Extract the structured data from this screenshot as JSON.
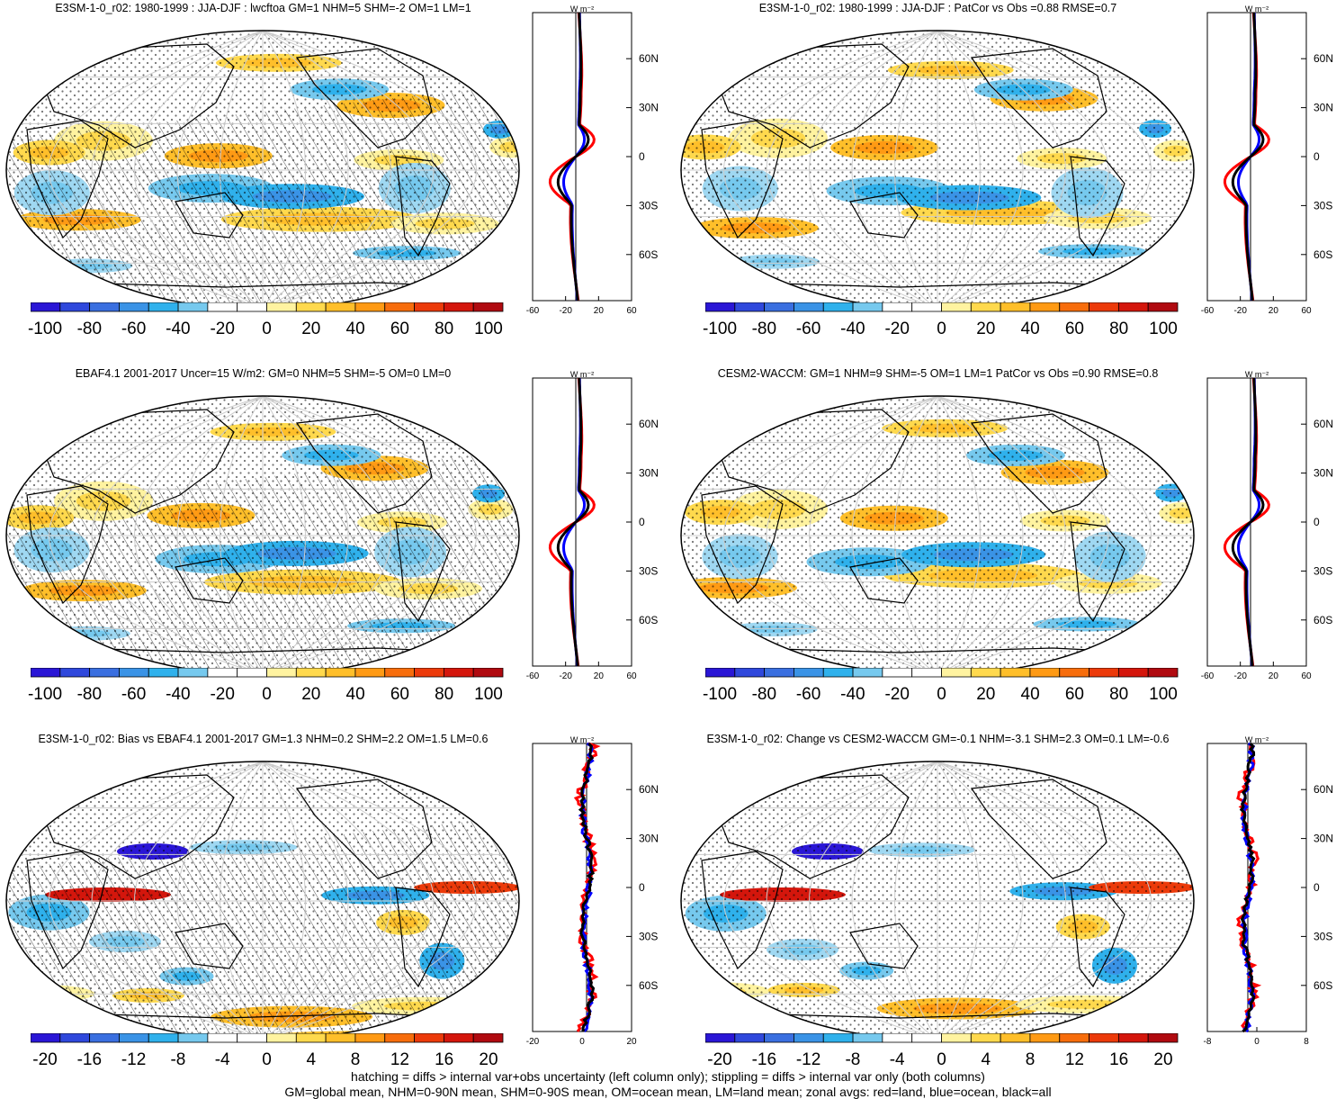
{
  "panels": [
    {
      "title": "E3SM-1-0_r02: 1980-1999 : JJA-DJF : lwcftoa GM=1 NHM=5 SHM=-2 OM=1 LM=1",
      "colorbar_labels": [
        "-100",
        "-80",
        "-60",
        "-40",
        "-20",
        "0",
        "20",
        "40",
        "60",
        "80",
        "100"
      ],
      "zonal_units": "W m⁻²",
      "zonal_x_ticks": [
        "-60",
        "-20",
        "20",
        "60"
      ],
      "lat_ticks": [
        "60N",
        "30N",
        "0",
        "30S",
        "60S"
      ],
      "hatching": true
    },
    {
      "title": "E3SM-1-0_r02: 1980-1999 : JJA-DJF : PatCor vs Obs =0.88 RMSE=0.7",
      "colorbar_labels": [
        "-100",
        "-80",
        "-60",
        "-40",
        "-20",
        "0",
        "20",
        "40",
        "60",
        "80",
        "100"
      ],
      "zonal_units": "W m⁻²",
      "zonal_x_ticks": [
        "-60",
        "-20",
        "20",
        "60"
      ],
      "lat_ticks": [
        "60N",
        "30N",
        "0",
        "30S",
        "60S"
      ],
      "hatching": false
    },
    {
      "title": "EBAF4.1 2001-2017 Uncer=15 W/m2: GM=0 NHM=5 SHM=-5 OM=0 LM=0",
      "colorbar_labels": [
        "-100",
        "-80",
        "-60",
        "-40",
        "-20",
        "0",
        "20",
        "40",
        "60",
        "80",
        "100"
      ],
      "zonal_units": "W m⁻²",
      "zonal_x_ticks": [
        "-60",
        "-20",
        "20",
        "60"
      ],
      "lat_ticks": [
        "60N",
        "30N",
        "0",
        "30S",
        "60S"
      ],
      "hatching": true
    },
    {
      "title": "CESM2-WACCM: GM=1 NHM=9 SHM=-5 OM=1 LM=1 PatCor vs Obs =0.90 RMSE=0.8",
      "colorbar_labels": [
        "-100",
        "-80",
        "-60",
        "-40",
        "-20",
        "0",
        "20",
        "40",
        "60",
        "80",
        "100"
      ],
      "zonal_units": "W m⁻²",
      "zonal_x_ticks": [
        "-60",
        "-20",
        "20",
        "60"
      ],
      "lat_ticks": [
        "60N",
        "30N",
        "0",
        "30S",
        "60S"
      ],
      "hatching": false
    },
    {
      "title": "E3SM-1-0_r02: Bias vs EBAF4.1 2001-2017 GM=1.3 NHM=0.2 SHM=2.2 OM=1.5 LM=0.6",
      "colorbar_labels": [
        "-20",
        "-16",
        "-12",
        "-8",
        "-4",
        "0",
        "4",
        "8",
        "12",
        "16",
        "20"
      ],
      "zonal_units": "W m⁻²",
      "zonal_x_ticks": [
        "-20",
        "0",
        "20"
      ],
      "lat_ticks": [
        "60N",
        "30N",
        "0",
        "30S",
        "60S"
      ],
      "hatching": true
    },
    {
      "title": "E3SM-1-0_r02: Change vs CESM2-WACCM GM=-0.1 NHM=-3.1 SHM=2.3 OM=0.1 LM=-0.6",
      "colorbar_labels": [
        "-20",
        "-16",
        "-12",
        "-8",
        "-4",
        "0",
        "4",
        "8",
        "12",
        "16",
        "20"
      ],
      "zonal_units": "W m⁻²",
      "zonal_x_ticks": [
        "-8",
        "0",
        "8"
      ],
      "lat_ticks": [
        "60N",
        "30N",
        "0",
        "30S",
        "60S"
      ],
      "hatching": false
    }
  ],
  "colorbar_colors": [
    "#2a16d6",
    "#2f48dc",
    "#3a6fe0",
    "#3a93e6",
    "#2fb1ec",
    "#76c9ee",
    "#ffffff",
    "#ffffff",
    "#fff3a0",
    "#ffd94d",
    "#ffbf2a",
    "#ff9a14",
    "#f76d0c",
    "#ec3a0a",
    "#d4160c",
    "#b00a10"
  ],
  "legend_colors": {
    "land": "red",
    "ocean": "blue",
    "all": "black"
  },
  "footer": {
    "line1": "hatching = diffs > internal var+obs uncertainty (left column only); stippling = diffs > internal var only (both columns)",
    "line2": "GM=global mean, NHM=0-90N mean, SHM=0-90S mean, OM=ocean mean, LM=land mean; zonal avgs: red=land, blue=ocean, black=all"
  }
}
